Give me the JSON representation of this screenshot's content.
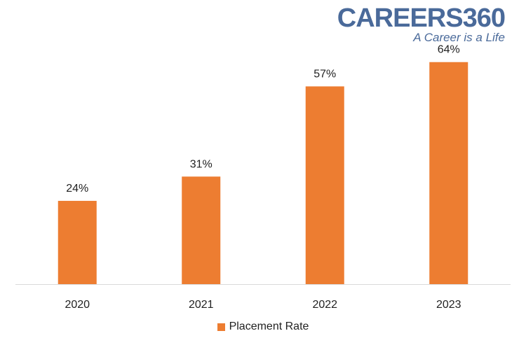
{
  "brand": {
    "name": "CAREERS360",
    "tagline": "A Career is a Life"
  },
  "chart_data": {
    "type": "bar",
    "categories": [
      "2020",
      "2021",
      "2022",
      "2023"
    ],
    "series": [
      {
        "name": "Placement Rate",
        "values": [
          24,
          31,
          57,
          64
        ],
        "labels": [
          "24%",
          "31%",
          "57%",
          "64%"
        ],
        "color": "#ed7d31"
      }
    ],
    "ylim": [
      0,
      70
    ],
    "grid": false,
    "legend": "bottom-center",
    "axis_color": "#d9d9d9"
  }
}
